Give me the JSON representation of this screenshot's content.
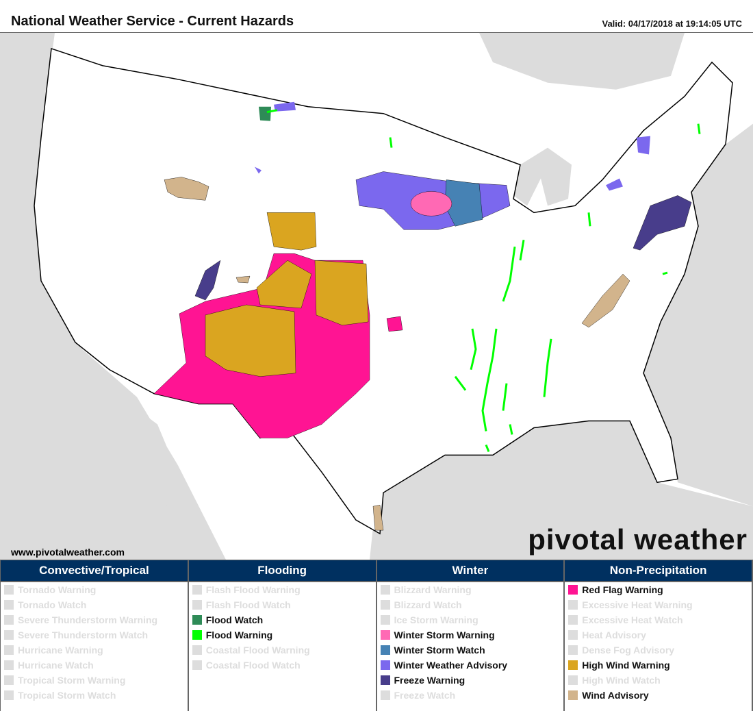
{
  "header": {
    "title": "National Weather Service - Current Hazards",
    "valid": "Valid: 04/17/2018 at 19:14:05 UTC"
  },
  "map": {
    "website": "www.pivotalweather.com",
    "logo": "pivotal weather"
  },
  "colors": {
    "header_bg": "#003060",
    "inactive": "#dddddd",
    "water": "#dcdcdc"
  },
  "legend": [
    {
      "title": "Convective/Tropical",
      "items": [
        {
          "label": "Tornado Warning",
          "active": false
        },
        {
          "label": "Tornado Watch",
          "active": false
        },
        {
          "label": "Severe Thunderstorm Warning",
          "active": false
        },
        {
          "label": "Severe Thunderstorm Watch",
          "active": false
        },
        {
          "label": "Hurricane Warning",
          "active": false
        },
        {
          "label": "Hurricane Watch",
          "active": false
        },
        {
          "label": "Tropical Storm Warning",
          "active": false
        },
        {
          "label": "Tropical Storm Watch",
          "active": false
        }
      ]
    },
    {
      "title": "Flooding",
      "items": [
        {
          "label": "Flash Flood Warning",
          "active": false
        },
        {
          "label": "Flash Flood Watch",
          "active": false
        },
        {
          "label": "Flood Watch",
          "active": true,
          "color": "#2e8b57"
        },
        {
          "label": "Flood Warning",
          "active": true,
          "color": "#00ff00"
        },
        {
          "label": "Coastal Flood Warning",
          "active": false
        },
        {
          "label": "Coastal Flood Watch",
          "active": false
        }
      ]
    },
    {
      "title": "Winter",
      "items": [
        {
          "label": "Blizzard Warning",
          "active": false
        },
        {
          "label": "Blizzard Watch",
          "active": false
        },
        {
          "label": "Ice Storm Warning",
          "active": false
        },
        {
          "label": "Winter Storm Warning",
          "active": true,
          "color": "#ff69b4"
        },
        {
          "label": "Winter Storm Watch",
          "active": true,
          "color": "#4682b4"
        },
        {
          "label": "Winter Weather Advisory",
          "active": true,
          "color": "#7b68ee"
        },
        {
          "label": "Freeze Warning",
          "active": true,
          "color": "#483d8b"
        },
        {
          "label": "Freeze Watch",
          "active": false
        }
      ]
    },
    {
      "title": "Non-Precipitation",
      "items": [
        {
          "label": "Red Flag Warning",
          "active": true,
          "color": "#ff1493"
        },
        {
          "label": "Excessive Heat Warning",
          "active": false
        },
        {
          "label": "Excessive Heat Watch",
          "active": false
        },
        {
          "label": "Heat Advisory",
          "active": false
        },
        {
          "label": "Dense Fog Advisory",
          "active": false
        },
        {
          "label": "High Wind Warning",
          "active": true,
          "color": "#daa520"
        },
        {
          "label": "High Wind Watch",
          "active": false
        },
        {
          "label": "Wind Advisory",
          "active": true,
          "color": "#d2b48c"
        }
      ]
    }
  ]
}
